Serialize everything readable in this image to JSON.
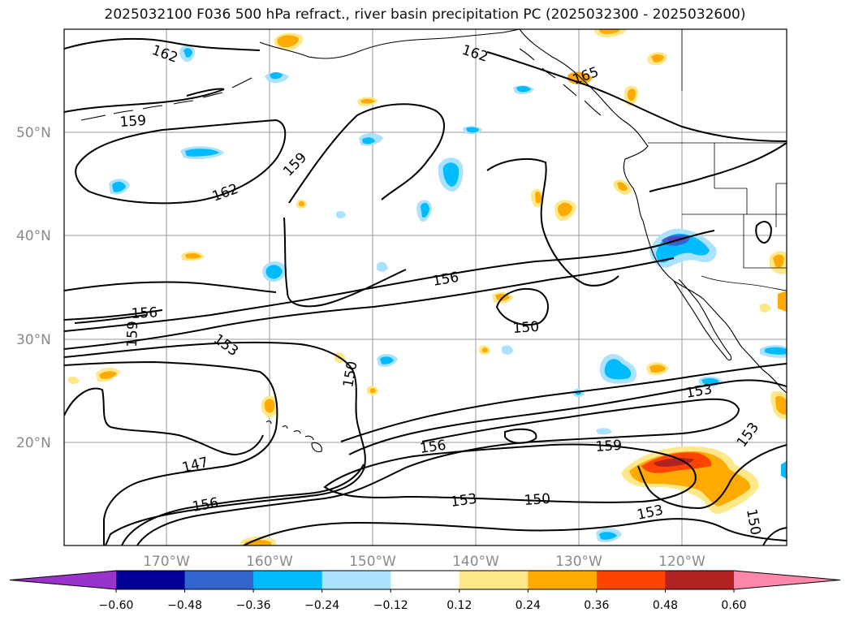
{
  "title": "2025032100 F036 500 hPa refract., river basin precipitation PC (2025032300 - 2025032600)",
  "lat_labels": [
    "50°N",
    "40°N",
    "30°N",
    "20°N"
  ],
  "lon_labels": [
    "170°W",
    "160°W",
    "150°W",
    "140°W",
    "130°W",
    "120°W"
  ],
  "contour_labels": [
    "162",
    "162",
    "165",
    "159",
    "159",
    "162",
    "156",
    "156",
    "159",
    "153",
    "150",
    "150",
    "153",
    "153",
    "156",
    "159",
    "147",
    "156",
    "153",
    "150",
    "153",
    "150"
  ],
  "colorbar": {
    "ticks": [
      "−0.60",
      "−0.48",
      "−0.36",
      "−0.24",
      "−0.12",
      "0.12",
      "0.24",
      "0.36",
      "0.48",
      "0.60"
    ],
    "colors": [
      "#9933cc",
      "#000099",
      "#3366cc",
      "#00bbff",
      "#aae2ff",
      "#ffffff",
      "#ffe88a",
      "#ffaa00",
      "#ff4400",
      "#b22222",
      "#ff88aa"
    ]
  }
}
